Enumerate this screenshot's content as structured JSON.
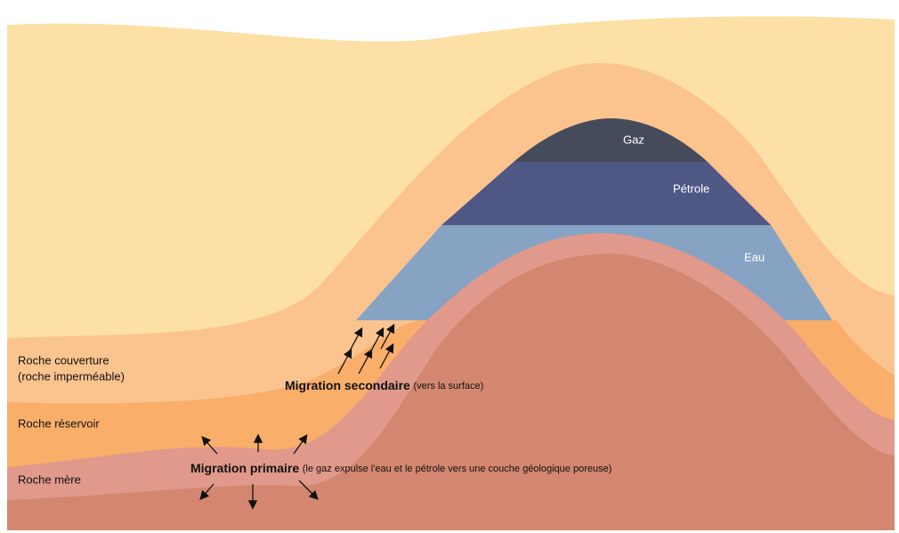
{
  "layers": {
    "gas": "Gaz",
    "oil": "Pétrole",
    "water": "Eau"
  },
  "rocks": {
    "cap": "Roche couverture",
    "cap_note": "(roche imperméable)",
    "reservoir": "Roche réservoir",
    "source": "Roche mère"
  },
  "migration": {
    "secondary": {
      "title": "Migration secondaire",
      "note": "(vers la surface)"
    },
    "primary": {
      "title": "Migration primaire",
      "note": "(le gaz expulse l'eau et le pétrole vers une couche géologique poreuse)"
    }
  }
}
